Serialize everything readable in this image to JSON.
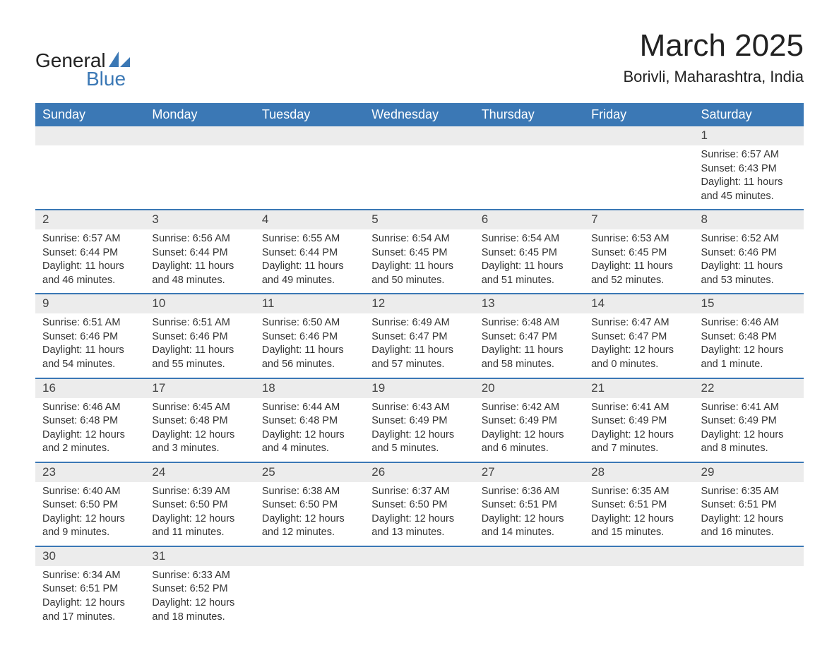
{
  "logo": {
    "general": "General",
    "blue": "Blue",
    "sail_color": "#3b78b5"
  },
  "title": {
    "main": "March 2025",
    "sub": "Borivli, Maharashtra, India"
  },
  "colors": {
    "header_bg": "#3b78b5",
    "header_text": "#ffffff",
    "daynum_bg": "#ececec",
    "row_border": "#3b78b5",
    "text": "#333333",
    "page_bg": "#ffffff"
  },
  "typography": {
    "title_fontsize": 44,
    "subtitle_fontsize": 22,
    "header_fontsize": 18,
    "daynum_fontsize": 17,
    "detail_fontsize": 14.5
  },
  "calendar": {
    "type": "table",
    "columns": [
      "Sunday",
      "Monday",
      "Tuesday",
      "Wednesday",
      "Thursday",
      "Friday",
      "Saturday"
    ],
    "weeks": [
      [
        null,
        null,
        null,
        null,
        null,
        null,
        {
          "n": "1",
          "sr": "Sunrise: 6:57 AM",
          "ss": "Sunset: 6:43 PM",
          "dl1": "Daylight: 11 hours",
          "dl2": "and 45 minutes."
        }
      ],
      [
        {
          "n": "2",
          "sr": "Sunrise: 6:57 AM",
          "ss": "Sunset: 6:44 PM",
          "dl1": "Daylight: 11 hours",
          "dl2": "and 46 minutes."
        },
        {
          "n": "3",
          "sr": "Sunrise: 6:56 AM",
          "ss": "Sunset: 6:44 PM",
          "dl1": "Daylight: 11 hours",
          "dl2": "and 48 minutes."
        },
        {
          "n": "4",
          "sr": "Sunrise: 6:55 AM",
          "ss": "Sunset: 6:44 PM",
          "dl1": "Daylight: 11 hours",
          "dl2": "and 49 minutes."
        },
        {
          "n": "5",
          "sr": "Sunrise: 6:54 AM",
          "ss": "Sunset: 6:45 PM",
          "dl1": "Daylight: 11 hours",
          "dl2": "and 50 minutes."
        },
        {
          "n": "6",
          "sr": "Sunrise: 6:54 AM",
          "ss": "Sunset: 6:45 PM",
          "dl1": "Daylight: 11 hours",
          "dl2": "and 51 minutes."
        },
        {
          "n": "7",
          "sr": "Sunrise: 6:53 AM",
          "ss": "Sunset: 6:45 PM",
          "dl1": "Daylight: 11 hours",
          "dl2": "and 52 minutes."
        },
        {
          "n": "8",
          "sr": "Sunrise: 6:52 AM",
          "ss": "Sunset: 6:46 PM",
          "dl1": "Daylight: 11 hours",
          "dl2": "and 53 minutes."
        }
      ],
      [
        {
          "n": "9",
          "sr": "Sunrise: 6:51 AM",
          "ss": "Sunset: 6:46 PM",
          "dl1": "Daylight: 11 hours",
          "dl2": "and 54 minutes."
        },
        {
          "n": "10",
          "sr": "Sunrise: 6:51 AM",
          "ss": "Sunset: 6:46 PM",
          "dl1": "Daylight: 11 hours",
          "dl2": "and 55 minutes."
        },
        {
          "n": "11",
          "sr": "Sunrise: 6:50 AM",
          "ss": "Sunset: 6:46 PM",
          "dl1": "Daylight: 11 hours",
          "dl2": "and 56 minutes."
        },
        {
          "n": "12",
          "sr": "Sunrise: 6:49 AM",
          "ss": "Sunset: 6:47 PM",
          "dl1": "Daylight: 11 hours",
          "dl2": "and 57 minutes."
        },
        {
          "n": "13",
          "sr": "Sunrise: 6:48 AM",
          "ss": "Sunset: 6:47 PM",
          "dl1": "Daylight: 11 hours",
          "dl2": "and 58 minutes."
        },
        {
          "n": "14",
          "sr": "Sunrise: 6:47 AM",
          "ss": "Sunset: 6:47 PM",
          "dl1": "Daylight: 12 hours",
          "dl2": "and 0 minutes."
        },
        {
          "n": "15",
          "sr": "Sunrise: 6:46 AM",
          "ss": "Sunset: 6:48 PM",
          "dl1": "Daylight: 12 hours",
          "dl2": "and 1 minute."
        }
      ],
      [
        {
          "n": "16",
          "sr": "Sunrise: 6:46 AM",
          "ss": "Sunset: 6:48 PM",
          "dl1": "Daylight: 12 hours",
          "dl2": "and 2 minutes."
        },
        {
          "n": "17",
          "sr": "Sunrise: 6:45 AM",
          "ss": "Sunset: 6:48 PM",
          "dl1": "Daylight: 12 hours",
          "dl2": "and 3 minutes."
        },
        {
          "n": "18",
          "sr": "Sunrise: 6:44 AM",
          "ss": "Sunset: 6:48 PM",
          "dl1": "Daylight: 12 hours",
          "dl2": "and 4 minutes."
        },
        {
          "n": "19",
          "sr": "Sunrise: 6:43 AM",
          "ss": "Sunset: 6:49 PM",
          "dl1": "Daylight: 12 hours",
          "dl2": "and 5 minutes."
        },
        {
          "n": "20",
          "sr": "Sunrise: 6:42 AM",
          "ss": "Sunset: 6:49 PM",
          "dl1": "Daylight: 12 hours",
          "dl2": "and 6 minutes."
        },
        {
          "n": "21",
          "sr": "Sunrise: 6:41 AM",
          "ss": "Sunset: 6:49 PM",
          "dl1": "Daylight: 12 hours",
          "dl2": "and 7 minutes."
        },
        {
          "n": "22",
          "sr": "Sunrise: 6:41 AM",
          "ss": "Sunset: 6:49 PM",
          "dl1": "Daylight: 12 hours",
          "dl2": "and 8 minutes."
        }
      ],
      [
        {
          "n": "23",
          "sr": "Sunrise: 6:40 AM",
          "ss": "Sunset: 6:50 PM",
          "dl1": "Daylight: 12 hours",
          "dl2": "and 9 minutes."
        },
        {
          "n": "24",
          "sr": "Sunrise: 6:39 AM",
          "ss": "Sunset: 6:50 PM",
          "dl1": "Daylight: 12 hours",
          "dl2": "and 11 minutes."
        },
        {
          "n": "25",
          "sr": "Sunrise: 6:38 AM",
          "ss": "Sunset: 6:50 PM",
          "dl1": "Daylight: 12 hours",
          "dl2": "and 12 minutes."
        },
        {
          "n": "26",
          "sr": "Sunrise: 6:37 AM",
          "ss": "Sunset: 6:50 PM",
          "dl1": "Daylight: 12 hours",
          "dl2": "and 13 minutes."
        },
        {
          "n": "27",
          "sr": "Sunrise: 6:36 AM",
          "ss": "Sunset: 6:51 PM",
          "dl1": "Daylight: 12 hours",
          "dl2": "and 14 minutes."
        },
        {
          "n": "28",
          "sr": "Sunrise: 6:35 AM",
          "ss": "Sunset: 6:51 PM",
          "dl1": "Daylight: 12 hours",
          "dl2": "and 15 minutes."
        },
        {
          "n": "29",
          "sr": "Sunrise: 6:35 AM",
          "ss": "Sunset: 6:51 PM",
          "dl1": "Daylight: 12 hours",
          "dl2": "and 16 minutes."
        }
      ],
      [
        {
          "n": "30",
          "sr": "Sunrise: 6:34 AM",
          "ss": "Sunset: 6:51 PM",
          "dl1": "Daylight: 12 hours",
          "dl2": "and 17 minutes."
        },
        {
          "n": "31",
          "sr": "Sunrise: 6:33 AM",
          "ss": "Sunset: 6:52 PM",
          "dl1": "Daylight: 12 hours",
          "dl2": "and 18 minutes."
        },
        null,
        null,
        null,
        null,
        null
      ]
    ]
  }
}
